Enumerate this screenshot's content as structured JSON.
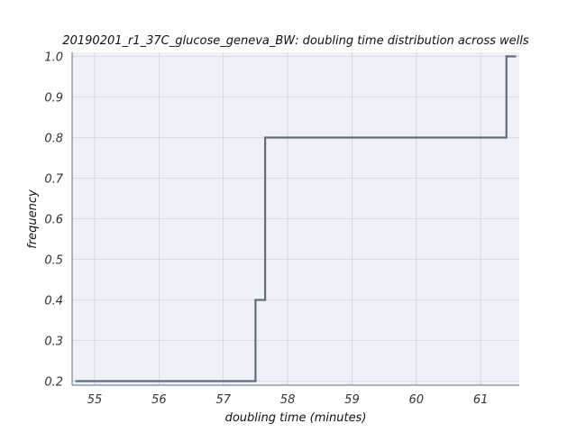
{
  "chart_data": {
    "type": "line",
    "title": "20190201_r1_37C_glucose_geneva_BW: doubling time distribution across wells",
    "xlabel": "doubling time (minutes)",
    "ylabel": "frequency",
    "xlim": [
      54.65,
      61.6
    ],
    "ylim": [
      0.19,
      1.01
    ],
    "xticks": [
      55,
      56,
      57,
      58,
      59,
      60,
      61
    ],
    "yticks": [
      0.2,
      0.3,
      0.4,
      0.5,
      0.6,
      0.7,
      0.8,
      0.9,
      1.0
    ],
    "xtick_labels": [
      "55",
      "56",
      "57",
      "58",
      "59",
      "60",
      "61"
    ],
    "ytick_labels": [
      "0.2",
      "0.3",
      "0.4",
      "0.5",
      "0.6",
      "0.7",
      "0.8",
      "0.9",
      "1.0"
    ],
    "grid": true,
    "series": [
      {
        "step": "post",
        "color": "#5f6f7a",
        "x": [
          54.7,
          57.5,
          57.65,
          61.4,
          61.55
        ],
        "y": [
          0.2,
          0.4,
          0.8,
          1.0,
          1.0
        ]
      }
    ]
  },
  "colors": {
    "plot_background": "#eff1f6",
    "grid": "#cfd2d8",
    "line": "#5f6f7a",
    "axis": "#5f6f7a"
  }
}
